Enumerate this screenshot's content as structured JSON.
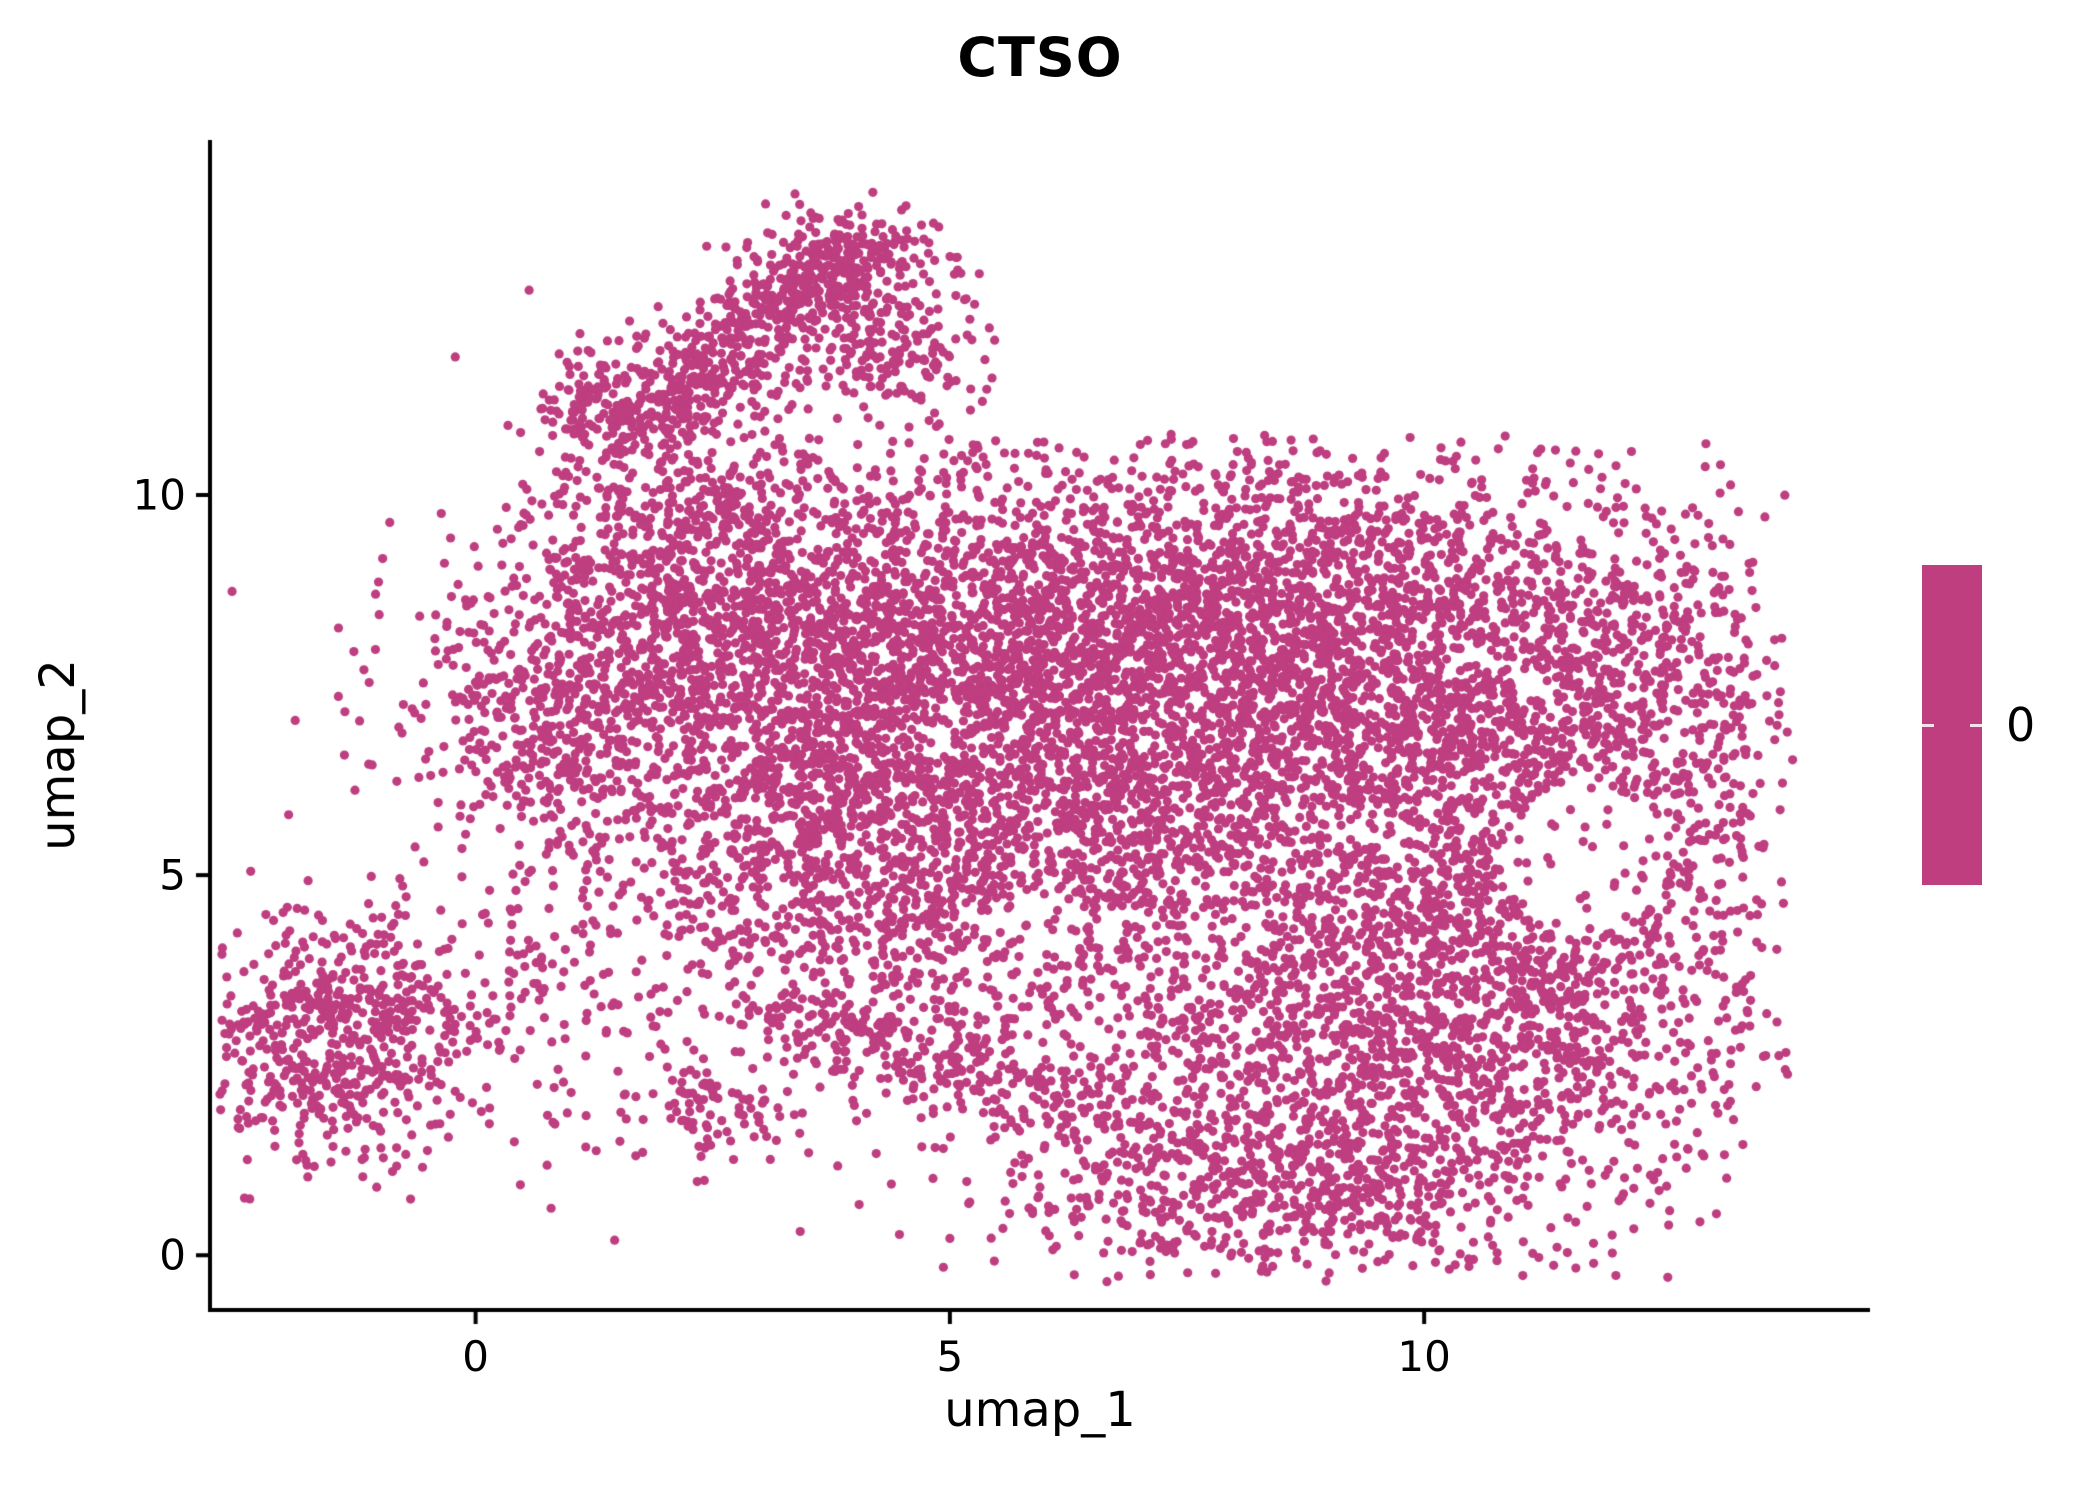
{
  "chart_data": {
    "type": "scatter",
    "title": "CTSO",
    "xlabel": "umap_1",
    "ylabel": "umap_2",
    "point_color": "#BE3E80",
    "point_radius_px": 4.6,
    "background_color": "#ffffff",
    "axis_color": "#000000",
    "axes": {
      "xlim": [
        -2.8,
        14.7
      ],
      "ylim": [
        -0.72,
        14.67
      ],
      "xticks": [
        0,
        5,
        10
      ],
      "yticks": [
        0,
        5,
        10
      ],
      "grid": false
    },
    "legend": {
      "label": "0",
      "colorbar_color": "#BE3E80",
      "position": "right"
    },
    "n_points_estimate": 14000,
    "representation": "gaussian_mixture_summary_of_umap_point_cloud",
    "clusters": [
      {
        "name": "main-left-top",
        "shape": "gauss",
        "cx": 3.0,
        "cy": 7.8,
        "sx": 1.6,
        "sy": 1.4,
        "n": 1400
      },
      {
        "name": "main-top-mid",
        "shape": "gauss",
        "cx": 6.0,
        "cy": 8.4,
        "sx": 1.8,
        "sy": 1.2,
        "n": 1500
      },
      {
        "name": "main-top-right",
        "shape": "gauss",
        "cx": 9.2,
        "cy": 8.3,
        "sx": 1.8,
        "sy": 1.2,
        "n": 1500
      },
      {
        "name": "main-center",
        "shape": "gauss",
        "cx": 7.0,
        "cy": 6.0,
        "sx": 2.2,
        "sy": 1.5,
        "n": 1700
      },
      {
        "name": "main-center-left",
        "shape": "gauss",
        "cx": 4.1,
        "cy": 5.3,
        "sx": 1.4,
        "sy": 1.3,
        "n": 950
      },
      {
        "name": "main-left-edge",
        "shape": "gauss",
        "cx": 0.9,
        "cy": 7.0,
        "sx": 0.8,
        "sy": 0.9,
        "n": 350
      },
      {
        "name": "main-center-right",
        "shape": "gauss",
        "cx": 10.3,
        "cy": 5.8,
        "sx": 1.5,
        "sy": 1.8,
        "n": 1100
      },
      {
        "name": "right-lobe",
        "shape": "gauss",
        "cx": 12.3,
        "cy": 6.6,
        "sx": 0.8,
        "sy": 1.6,
        "n": 500
      },
      {
        "name": "bottom-right-mass",
        "shape": "gauss",
        "cx": 9.3,
        "cy": 2.6,
        "sx": 1.7,
        "sy": 1.4,
        "n": 1250
      },
      {
        "name": "bottom-right-ext",
        "shape": "gauss",
        "cx": 11.4,
        "cy": 3.1,
        "sx": 1.0,
        "sy": 1.2,
        "n": 450
      },
      {
        "name": "bottom-tip",
        "shape": "gauss",
        "cx": 8.3,
        "cy": 0.9,
        "sx": 1.3,
        "sy": 0.55,
        "n": 450
      },
      {
        "name": "upper-left-bump",
        "shape": "gauss",
        "cx": 2.1,
        "cy": 9.3,
        "sx": 0.8,
        "sy": 0.9,
        "n": 420
      },
      {
        "name": "arm-strip",
        "shape": "strip",
        "x1": 1.7,
        "y1": 10.8,
        "x2": 3.9,
        "y2": 13.1,
        "jx": 0.38,
        "jy": 0.3,
        "n": 480
      },
      {
        "name": "arm-top-cap",
        "shape": "gauss",
        "cx": 3.95,
        "cy": 13.0,
        "sx": 0.55,
        "sy": 0.42,
        "n": 220
      },
      {
        "name": "arm-offshoot",
        "shape": "gauss",
        "cx": 4.35,
        "cy": 11.9,
        "sx": 0.42,
        "sy": 0.35,
        "n": 130
      },
      {
        "name": "arm-base-clump",
        "shape": "gauss",
        "cx": 1.4,
        "cy": 11.2,
        "sx": 0.38,
        "sy": 0.42,
        "n": 140
      },
      {
        "name": "bottom-left-cluster",
        "shape": "gauss",
        "cx": -1.55,
        "cy": 2.9,
        "sx": 0.8,
        "sy": 0.8,
        "n": 650
      },
      {
        "name": "bridge-sparse",
        "shape": "gauss",
        "cx": 0.9,
        "cy": 3.4,
        "sx": 1.0,
        "sy": 0.9,
        "n": 120
      },
      {
        "name": "small-clump-low-left",
        "shape": "gauss",
        "cx": 2.6,
        "cy": 1.9,
        "sx": 0.42,
        "sy": 0.3,
        "n": 80
      },
      {
        "name": "valley-strip",
        "shape": "strip",
        "x1": 3.2,
        "y1": 3.2,
        "x2": 6.6,
        "y2": 1.9,
        "jx": 0.35,
        "jy": 0.28,
        "n": 240
      },
      {
        "name": "fill-noise",
        "shape": "gauss",
        "cx": 7.0,
        "cy": 5.6,
        "sx": 3.4,
        "sy": 2.9,
        "n": 600
      }
    ],
    "holes": [
      {
        "cx": 11.7,
        "cy": 5.2,
        "rx": 0.85,
        "ry": 1.0,
        "p": 0.85
      },
      {
        "cx": 5.9,
        "cy": 4.3,
        "rx": 0.55,
        "ry": 0.5,
        "p": 0.6
      },
      {
        "cx": 7.9,
        "cy": 4.1,
        "rx": 0.5,
        "ry": 0.45,
        "p": 0.5
      },
      {
        "cx": 4.9,
        "cy": 6.9,
        "rx": 0.45,
        "ry": 0.4,
        "p": 0.45
      },
      {
        "cx": 9.0,
        "cy": 5.6,
        "rx": 0.45,
        "ry": 0.4,
        "p": 0.4
      }
    ]
  }
}
